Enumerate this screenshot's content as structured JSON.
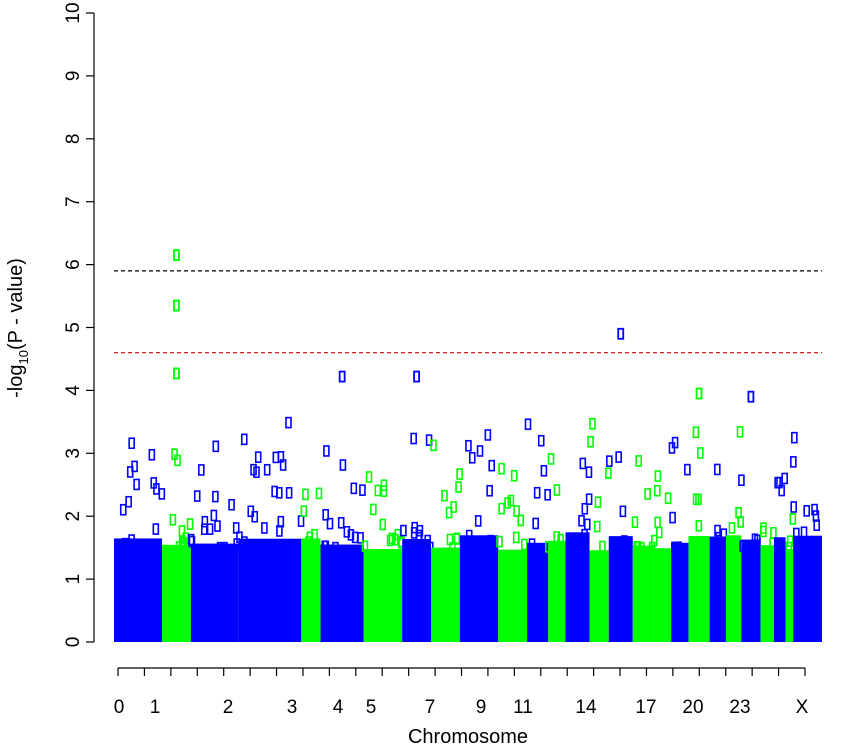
{
  "chart_data": {
    "type": "scatter",
    "title": "",
    "xlabel": "Chromosome",
    "ylabel_main": "-log",
    "ylabel_sub": "10",
    "ylabel_rest": "(P - value)",
    "ylim": [
      0,
      10
    ],
    "y_ticks": [
      "0",
      "1",
      "2",
      "3",
      "4",
      "5",
      "6",
      "7",
      "8",
      "9",
      "10"
    ],
    "chromosome_tick_labels": [
      "0",
      "1",
      "2",
      "3",
      "4",
      "5",
      "7",
      "9",
      "11",
      "14",
      "17",
      "20",
      "23",
      "X"
    ],
    "chromosomes": [
      "0",
      "1",
      "2",
      "3",
      "4",
      "5",
      "6",
      "7",
      "8",
      "9",
      "10",
      "11",
      "12",
      "13",
      "14",
      "15",
      "16",
      "17",
      "18",
      "19",
      "20",
      "21",
      "22",
      "23",
      "24",
      "25",
      "26",
      "X"
    ],
    "chromosome_colors": [
      "blue",
      "green",
      "blue",
      "blue",
      "green",
      "blue",
      "green",
      "blue",
      "green",
      "blue",
      "green",
      "blue",
      "green",
      "blue",
      "green",
      "blue",
      "green",
      "green",
      "blue",
      "green",
      "blue",
      "green",
      "blue",
      "green",
      "blue",
      "green",
      "blue",
      "blue"
    ],
    "thresholds": [
      {
        "value": 5.9,
        "color": "#000000",
        "style": "dashed"
      },
      {
        "value": 4.6,
        "color": "#e41a1c",
        "style": "dashed"
      }
    ],
    "highlighted_points": [
      {
        "chromosome": "1",
        "y": 6.15
      },
      {
        "chromosome": "1",
        "y": 5.35
      },
      {
        "chromosome": "1",
        "y": 4.27
      },
      {
        "chromosome": "15",
        "y": 4.9
      },
      {
        "chromosome": "5",
        "y": 4.22
      },
      {
        "chromosome": "7",
        "y": 4.22
      },
      {
        "chromosome": "19",
        "y": 3.95
      },
      {
        "chromosome": "22",
        "y": 3.9
      }
    ],
    "colors": {
      "blue": "#0000ff",
      "green": "#00ff00"
    }
  }
}
